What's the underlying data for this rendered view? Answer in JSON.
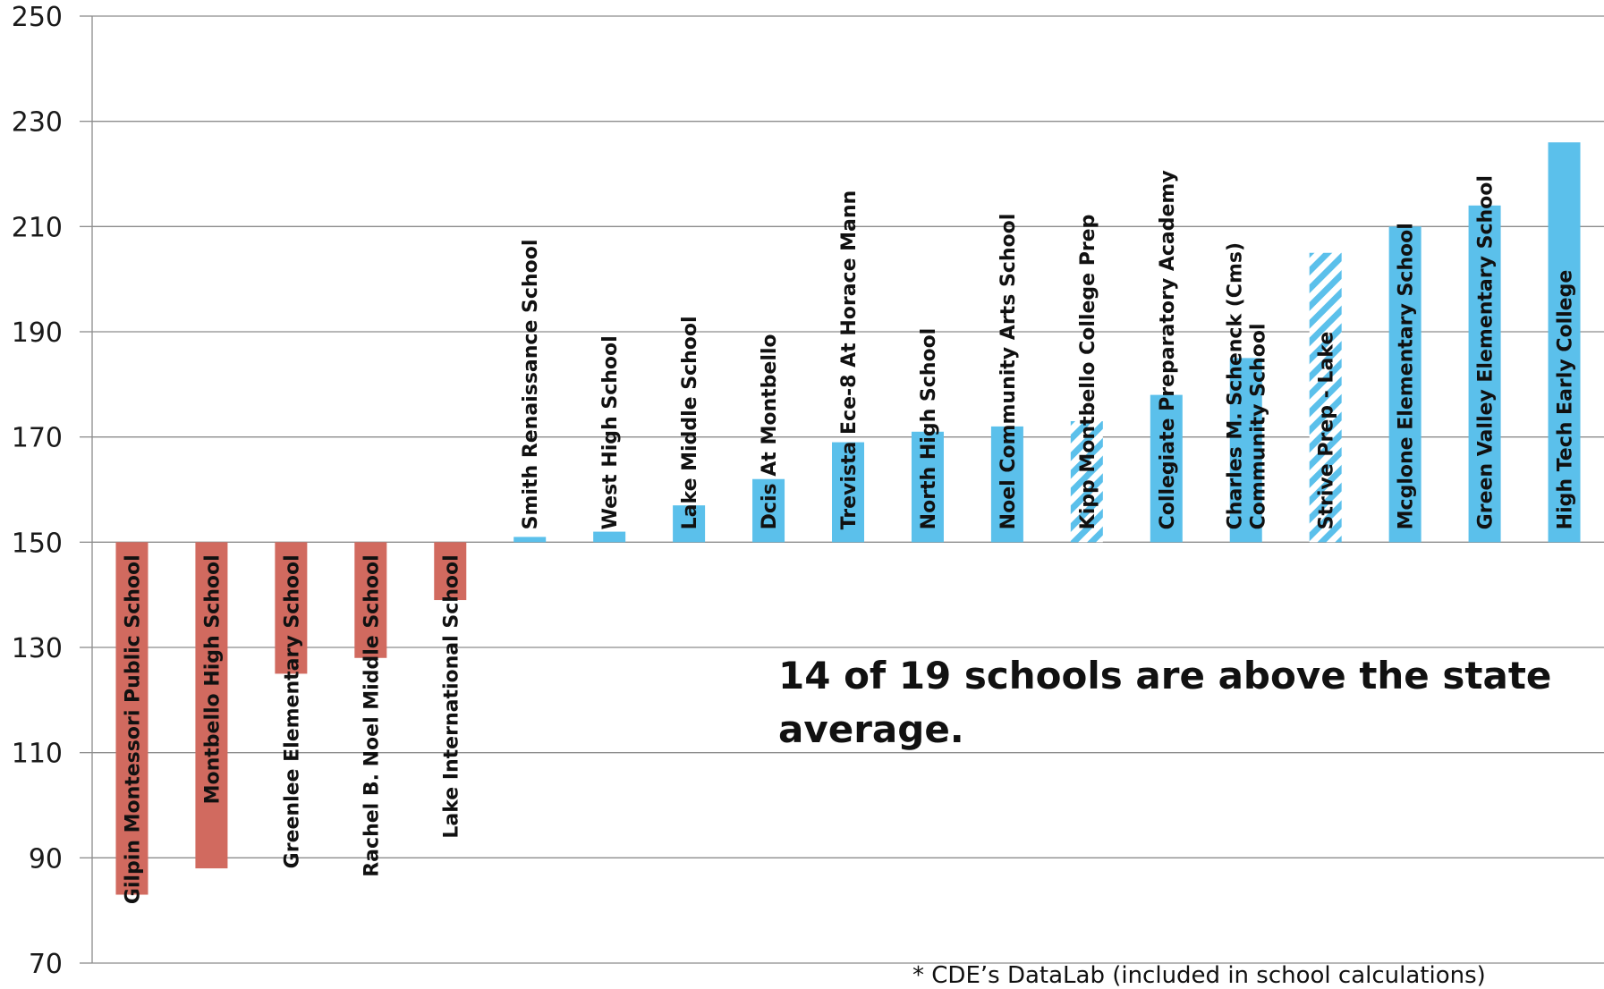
{
  "chart_data": {
    "type": "bar",
    "baseline": 150,
    "ylim": [
      70,
      250
    ],
    "yticks": [
      70,
      90,
      110,
      130,
      150,
      170,
      190,
      210,
      230,
      250
    ],
    "grid": true,
    "categories": [
      [
        "Gilpin Montessori Public School"
      ],
      [
        "Montbello High School"
      ],
      [
        "Greenlee Elementary School"
      ],
      [
        "Rachel B. Noel Middle School"
      ],
      [
        "Lake International School"
      ],
      [
        "Smith Renaissance School"
      ],
      [
        "West High School"
      ],
      [
        "Lake Middle School"
      ],
      [
        "Dcis At Montbello"
      ],
      [
        "Trevista Ece-8 At Horace Mann"
      ],
      [
        "North High School"
      ],
      [
        "Noel Community Arts School"
      ],
      [
        "Kipp Montbello College Prep"
      ],
      [
        "Collegiate Preparatory Academy"
      ],
      [
        "Charles M. Schenck (Cms)",
        "Community School"
      ],
      [
        "Strive Prep - Lake"
      ],
      [
        "Mcglone Elementary School"
      ],
      [
        "Green Valley Elementary School"
      ],
      [
        "High Tech Early College"
      ]
    ],
    "values": [
      83,
      88,
      125,
      128,
      139,
      151,
      152,
      157,
      162,
      169,
      171,
      172,
      173,
      178,
      185,
      205,
      210,
      214,
      226
    ],
    "styles": [
      "below",
      "below",
      "below",
      "below",
      "below",
      "above",
      "above",
      "above",
      "above",
      "above",
      "above",
      "above",
      "hatched",
      "above",
      "above",
      "hatched",
      "above",
      "above",
      "above"
    ],
    "colors": {
      "below": "#d16a5f",
      "above": "#5bc0eb",
      "hatch_bg": "#ffffff"
    },
    "annotation": "14 of 19 schools are above the state average.",
    "footnote": "* CDE’s DataLab (included in school calculations)"
  }
}
